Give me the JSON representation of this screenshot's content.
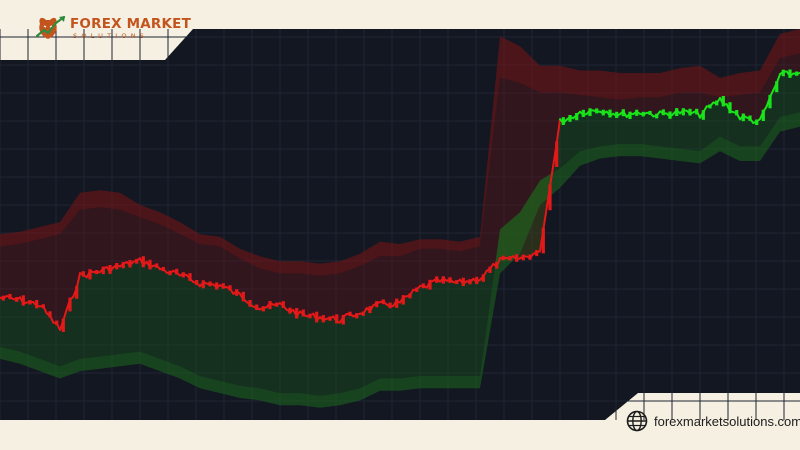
{
  "brand": {
    "name": "FOREX MARKET",
    "tagline": "SOLUTIONS",
    "website": "forexmarketsolutions.com",
    "colors": {
      "brand_orange": "#c4541e",
      "panel_cream": "#f5f0e1",
      "chart_bg": "#131722"
    }
  },
  "icons": {
    "logo": "bull-head-logo-icon",
    "web": "globe-icon"
  },
  "chart_data": {
    "type": "line",
    "grid": true,
    "colors": {
      "price_up": "#19e319",
      "price_down": "#e31919",
      "upper_band": "#7a1414",
      "lower_band": "#1b6a1b"
    },
    "x": [
      0,
      5,
      10,
      15,
      20,
      25,
      30,
      35,
      40,
      45,
      50,
      55,
      60,
      65,
      70,
      75,
      80,
      85,
      90,
      95,
      100,
      105,
      110,
      115,
      120,
      125,
      130,
      135,
      140,
      145,
      150,
      155,
      160,
      165,
      170,
      175,
      180,
      185,
      190,
      195,
      200
    ],
    "series": [
      {
        "role": "price",
        "values": [
          20,
          19,
          17,
          7,
          29,
          31,
          33,
          35,
          32,
          29,
          26,
          25,
          21,
          16,
          17,
          13,
          12,
          11,
          14,
          17,
          18,
          24,
          27,
          26,
          28,
          35,
          36,
          39,
          92,
          96,
          97,
          95,
          96,
          95,
          96,
          95,
          101,
          94,
          92,
          111,
          112
        ]
      },
      {
        "role": "upper-band-outer",
        "values": [
          46,
          47,
          49,
          51,
          63,
          64,
          63,
          58,
          55,
          51,
          46,
          45,
          40,
          37,
          35,
          35,
          34,
          35,
          38,
          43,
          42,
          44,
          44,
          43,
          45,
          127,
          123,
          115,
          115,
          113,
          113,
          112,
          112,
          112,
          114,
          115,
          110,
          112,
          113,
          128,
          130
        ]
      },
      {
        "role": "upper-band-inner",
        "values": [
          41,
          42,
          44,
          46,
          56,
          57,
          56,
          53,
          50,
          46,
          42,
          41,
          36,
          32,
          30,
          30,
          29,
          30,
          33,
          37,
          37,
          40,
          40,
          39,
          41,
          110,
          108,
          104,
          104,
          103,
          102,
          101,
          102,
          102,
          104,
          104,
          102,
          103,
          104,
          118,
          120
        ]
      },
      {
        "role": "lower-band-inner",
        "values": [
          0,
          -2,
          -5,
          -8,
          -5,
          -4,
          -3,
          -2,
          -5,
          -8,
          -12,
          -14,
          -16,
          -17,
          -19,
          -19,
          -20,
          -19,
          -17,
          -13,
          -13,
          -12,
          -12,
          -12,
          -12,
          48,
          55,
          68,
          73,
          80,
          82,
          83,
          83,
          82,
          81,
          80,
          86,
          82,
          82,
          94,
          96
        ]
      },
      {
        "role": "lower-band-outer",
        "values": [
          -5,
          -7,
          -10,
          -13,
          -10,
          -9,
          -8,
          -7,
          -10,
          -13,
          -17,
          -19,
          -21,
          -22,
          -24,
          -24,
          -25,
          -24,
          -22,
          -18,
          -18,
          -17,
          -17,
          -17,
          -17,
          30,
          38,
          58,
          65,
          74,
          77,
          78,
          78,
          77,
          76,
          75,
          80,
          76,
          76,
          88,
          90
        ]
      }
    ],
    "ylim": [
      -30,
      130
    ],
    "xlim": [
      0,
      200
    ]
  }
}
